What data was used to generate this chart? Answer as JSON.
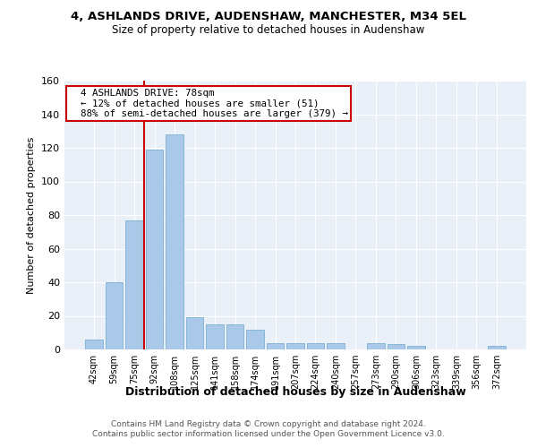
{
  "title1": "4, ASHLANDS DRIVE, AUDENSHAW, MANCHESTER, M34 5EL",
  "title2": "Size of property relative to detached houses in Audenshaw",
  "xlabel": "Distribution of detached houses by size in Audenshaw",
  "ylabel": "Number of detached properties",
  "categories": [
    "42sqm",
    "59sqm",
    "75sqm",
    "92sqm",
    "108sqm",
    "125sqm",
    "141sqm",
    "158sqm",
    "174sqm",
    "191sqm",
    "207sqm",
    "224sqm",
    "240sqm",
    "257sqm",
    "273sqm",
    "290sqm",
    "306sqm",
    "323sqm",
    "339sqm",
    "356sqm",
    "372sqm"
  ],
  "values": [
    6,
    40,
    77,
    119,
    128,
    19,
    15,
    15,
    12,
    4,
    4,
    4,
    4,
    0,
    4,
    3,
    2,
    0,
    0,
    0,
    2
  ],
  "bar_color": "#aac9e8",
  "bar_edge_color": "#7bafd4",
  "vline_x_index": 2.5,
  "vline_color": "#cc0000",
  "annotation_line1": "  4 ASHLANDS DRIVE: 78sqm",
  "annotation_line2": "  ← 12% of detached houses are smaller (51)",
  "annotation_line3": "  88% of semi-detached houses are larger (379) →",
  "annotation_box_color": "#cc0000",
  "ylim": [
    0,
    160
  ],
  "yticks": [
    0,
    20,
    40,
    60,
    80,
    100,
    120,
    140,
    160
  ],
  "bg_color": "#eaf0f8",
  "grid_color": "#ffffff",
  "footer1": "Contains HM Land Registry data © Crown copyright and database right 2024.",
  "footer2": "Contains public sector information licensed under the Open Government Licence v3.0."
}
